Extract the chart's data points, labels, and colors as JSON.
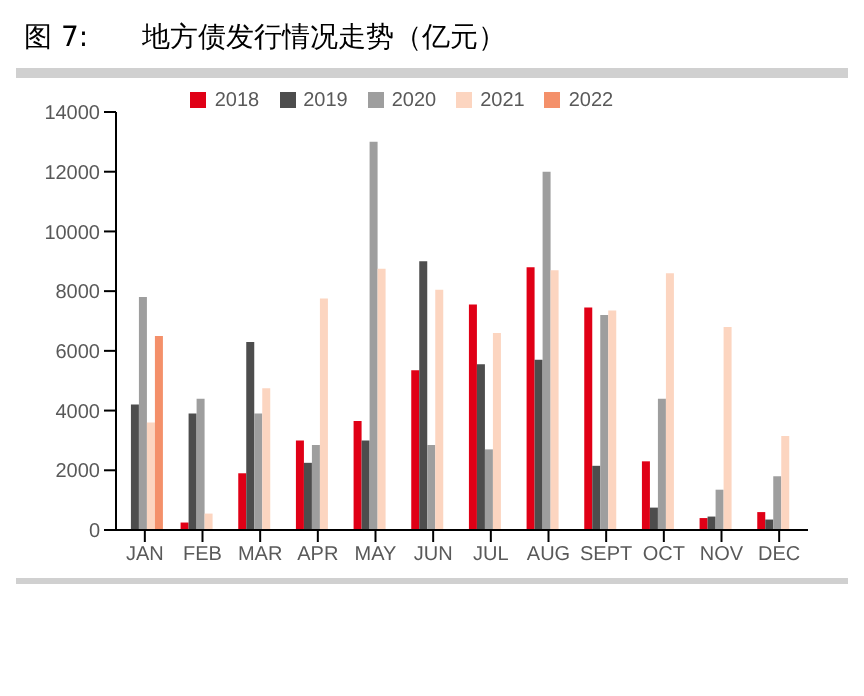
{
  "chart_data": {
    "type": "bar",
    "title": "图 7:      地方债发行情况走势（亿元）",
    "categories": [
      "JAN",
      "FEB",
      "MAR",
      "APR",
      "MAY",
      "JUN",
      "JUL",
      "AUG",
      "SEPT",
      "OCT",
      "NOV",
      "DEC"
    ],
    "series": [
      {
        "name": "2018",
        "color": "#e00016",
        "values": [
          null,
          250,
          1900,
          3000,
          3650,
          5350,
          7550,
          8800,
          7450,
          2300,
          400,
          600
        ]
      },
      {
        "name": "2019",
        "color": "#4d4d4d",
        "values": [
          4200,
          3900,
          6300,
          2250,
          3000,
          9000,
          5550,
          5700,
          2150,
          750,
          450,
          350
        ]
      },
      {
        "name": "2020",
        "color": "#9e9e9e",
        "values": [
          7800,
          4400,
          3900,
          2850,
          13000,
          2850,
          2700,
          12000,
          7200,
          4400,
          1350,
          1800
        ]
      },
      {
        "name": "2021",
        "color": "#fcd5c0",
        "values": [
          3600,
          550,
          4750,
          7750,
          8750,
          8050,
          6600,
          8700,
          7350,
          8600,
          6800,
          3150
        ]
      },
      {
        "name": "2022",
        "color": "#f4906a",
        "values": [
          6500,
          null,
          null,
          null,
          null,
          null,
          null,
          null,
          null,
          null,
          null,
          null
        ]
      }
    ],
    "ylim": [
      0,
      14000
    ],
    "yticks": [
      0,
      2000,
      4000,
      6000,
      8000,
      10000,
      12000,
      14000
    ],
    "grid": false,
    "legend": "top"
  }
}
